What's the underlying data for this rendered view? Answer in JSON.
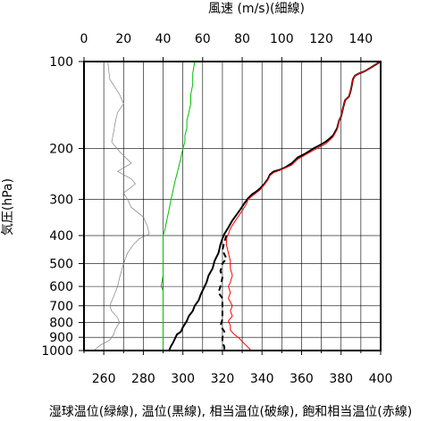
{
  "chart_data": {
    "type": "line",
    "top_axis_label": "風速 (m/s)(細線)",
    "bottom_axis_label": "湿球温位(緑線), 温位(黒線), 相当温位(破線), 飽和相当温位(赤線)",
    "left_axis_label": "気圧(hPa)",
    "top_axis": {
      "min": 0,
      "max": 150,
      "ticks": [
        0,
        20,
        40,
        60,
        80,
        100,
        120,
        140
      ]
    },
    "bottom_axis": {
      "min": 250,
      "max": 400,
      "ticks": [
        260,
        280,
        300,
        320,
        340,
        360,
        380,
        400
      ]
    },
    "y_axis": {
      "scale": "log",
      "range": [
        1000,
        100
      ],
      "labeled_ticks": [
        100,
        200,
        300,
        400,
        500,
        600,
        700,
        800,
        900,
        1000
      ],
      "gridlines": [
        100,
        200,
        300,
        400,
        500,
        600,
        700,
        800,
        900,
        1000
      ]
    },
    "grid": true,
    "series": [
      {
        "key": "wind_speed",
        "axis": "top",
        "color": "#808080",
        "style": "thin",
        "points": [
          [
            12,
            100
          ],
          [
            13,
            115
          ],
          [
            18,
            130
          ],
          [
            20,
            140
          ],
          [
            17,
            150
          ],
          [
            16,
            160
          ],
          [
            15,
            175
          ],
          [
            14,
            190
          ],
          [
            18,
            205
          ],
          [
            24,
            225
          ],
          [
            17,
            240
          ],
          [
            24,
            255
          ],
          [
            26,
            265
          ],
          [
            20,
            285
          ],
          [
            22,
            300
          ],
          [
            24,
            320
          ],
          [
            30,
            345
          ],
          [
            32,
            370
          ],
          [
            33,
            395
          ],
          [
            28,
            410
          ],
          [
            25,
            430
          ],
          [
            22,
            460
          ],
          [
            20,
            500
          ],
          [
            18,
            560
          ],
          [
            17,
            600
          ],
          [
            15,
            650
          ],
          [
            13,
            700
          ],
          [
            14,
            730
          ],
          [
            17,
            770
          ],
          [
            18,
            800
          ],
          [
            16,
            840
          ],
          [
            15,
            880
          ],
          [
            13,
            920
          ],
          [
            8,
            960
          ],
          [
            5,
            1000
          ]
        ]
      },
      {
        "key": "wet_bulb_potential_temperature",
        "axis": "bottom",
        "color": "#00c000",
        "style": "solid",
        "points": [
          [
            306,
            100
          ],
          [
            305,
            110
          ],
          [
            305,
            120
          ],
          [
            304,
            130
          ],
          [
            304,
            140
          ],
          [
            303,
            150
          ],
          [
            302,
            160
          ],
          [
            302,
            170
          ],
          [
            301,
            180
          ],
          [
            301,
            190
          ],
          [
            300,
            200
          ],
          [
            299,
            215
          ],
          [
            298,
            230
          ],
          [
            297,
            245
          ],
          [
            296,
            260
          ],
          [
            295,
            280
          ],
          [
            294,
            300
          ],
          [
            293,
            325
          ],
          [
            292,
            350
          ],
          [
            291,
            380
          ],
          [
            290,
            400
          ],
          [
            290,
            450
          ],
          [
            290,
            500
          ],
          [
            290,
            550
          ],
          [
            289,
            600
          ],
          [
            290,
            620
          ],
          [
            290,
            650
          ],
          [
            290,
            700
          ],
          [
            290,
            750
          ],
          [
            290,
            800
          ],
          [
            290,
            850
          ],
          [
            290,
            900
          ],
          [
            290,
            950
          ],
          [
            290,
            1000
          ]
        ]
      },
      {
        "key": "potential_temperature",
        "axis": "bottom",
        "color": "#000000",
        "style": "thick",
        "points": [
          [
            400,
            100
          ],
          [
            396,
            104
          ],
          [
            392,
            108
          ],
          [
            389,
            110
          ],
          [
            387,
            112
          ],
          [
            386,
            115
          ],
          [
            385,
            125
          ],
          [
            384,
            132
          ],
          [
            382,
            136
          ],
          [
            381,
            145
          ],
          [
            380,
            155
          ],
          [
            379,
            160
          ],
          [
            378,
            170
          ],
          [
            376,
            180
          ],
          [
            374,
            185
          ],
          [
            372,
            190
          ],
          [
            369,
            195
          ],
          [
            366,
            200
          ],
          [
            362,
            208
          ],
          [
            358,
            215
          ],
          [
            355,
            225
          ],
          [
            352,
            232
          ],
          [
            349,
            237
          ],
          [
            346,
            240
          ],
          [
            344,
            246
          ],
          [
            343,
            255
          ],
          [
            341,
            266
          ],
          [
            339,
            275
          ],
          [
            337,
            282
          ],
          [
            335,
            288
          ],
          [
            333,
            297
          ],
          [
            331,
            310
          ],
          [
            329,
            325
          ],
          [
            327,
            340
          ],
          [
            325,
            355
          ],
          [
            323,
            375
          ],
          [
            321,
            395
          ],
          [
            320,
            410
          ],
          [
            319,
            430
          ],
          [
            318,
            460
          ],
          [
            316,
            490
          ],
          [
            315,
            520
          ],
          [
            313,
            550
          ],
          [
            312,
            580
          ],
          [
            311,
            600
          ],
          [
            309,
            640
          ],
          [
            308,
            670
          ],
          [
            306,
            700
          ],
          [
            305,
            730
          ],
          [
            303,
            760
          ],
          [
            302,
            790
          ],
          [
            300,
            830
          ],
          [
            299,
            860
          ],
          [
            297,
            880
          ],
          [
            296,
            910
          ],
          [
            295,
            940
          ],
          [
            294,
            965
          ],
          [
            293,
            1000
          ]
        ]
      },
      {
        "key": "equivalent_potential_temperature",
        "axis": "bottom",
        "color": "#000000",
        "style": "dashed",
        "points": [
          [
            322,
            400
          ],
          [
            321,
            420
          ],
          [
            320,
            450
          ],
          [
            322,
            480
          ],
          [
            320,
            500
          ],
          [
            319,
            530
          ],
          [
            320,
            560
          ],
          [
            319,
            600
          ],
          [
            318,
            630
          ],
          [
            320,
            660
          ],
          [
            320,
            700
          ],
          [
            320,
            740
          ],
          [
            320,
            780
          ],
          [
            319,
            820
          ],
          [
            321,
            860
          ],
          [
            320,
            900
          ],
          [
            320,
            940
          ],
          [
            321,
            970
          ],
          [
            321,
            1000
          ]
        ]
      },
      {
        "key": "saturated_equivalent_potential_temperature",
        "axis": "bottom",
        "color": "#ff0000",
        "style": "solid",
        "points": [
          [
            400,
            100
          ],
          [
            396,
            104
          ],
          [
            392,
            108
          ],
          [
            389,
            110
          ],
          [
            387,
            112
          ],
          [
            386,
            115
          ],
          [
            385,
            125
          ],
          [
            384,
            132
          ],
          [
            382,
            136
          ],
          [
            381,
            145
          ],
          [
            380,
            155
          ],
          [
            379,
            160
          ],
          [
            378,
            172
          ],
          [
            376,
            182
          ],
          [
            374,
            188
          ],
          [
            372,
            193
          ],
          [
            369,
            198
          ],
          [
            366,
            203
          ],
          [
            362,
            210
          ],
          [
            358,
            218
          ],
          [
            355,
            228
          ],
          [
            352,
            233
          ],
          [
            349,
            238
          ],
          [
            346,
            242
          ],
          [
            344,
            248
          ],
          [
            343,
            257
          ],
          [
            341,
            268
          ],
          [
            339,
            278
          ],
          [
            337,
            285
          ],
          [
            335,
            292
          ],
          [
            333,
            300
          ],
          [
            332,
            312
          ],
          [
            330,
            328
          ],
          [
            328,
            344
          ],
          [
            326,
            360
          ],
          [
            324,
            378
          ],
          [
            323,
            395
          ],
          [
            322,
            410
          ],
          [
            322,
            430
          ],
          [
            323,
            460
          ],
          [
            324,
            490
          ],
          [
            324,
            520
          ],
          [
            325,
            550
          ],
          [
            324,
            580
          ],
          [
            323,
            600
          ],
          [
            324,
            630
          ],
          [
            323,
            660
          ],
          [
            325,
            700
          ],
          [
            324,
            730
          ],
          [
            325,
            760
          ],
          [
            323,
            790
          ],
          [
            324,
            820
          ],
          [
            324,
            850
          ],
          [
            326,
            880
          ],
          [
            328,
            900
          ],
          [
            330,
            930
          ],
          [
            332,
            960
          ],
          [
            334,
            990
          ],
          [
            333,
            1000
          ]
        ]
      }
    ]
  }
}
